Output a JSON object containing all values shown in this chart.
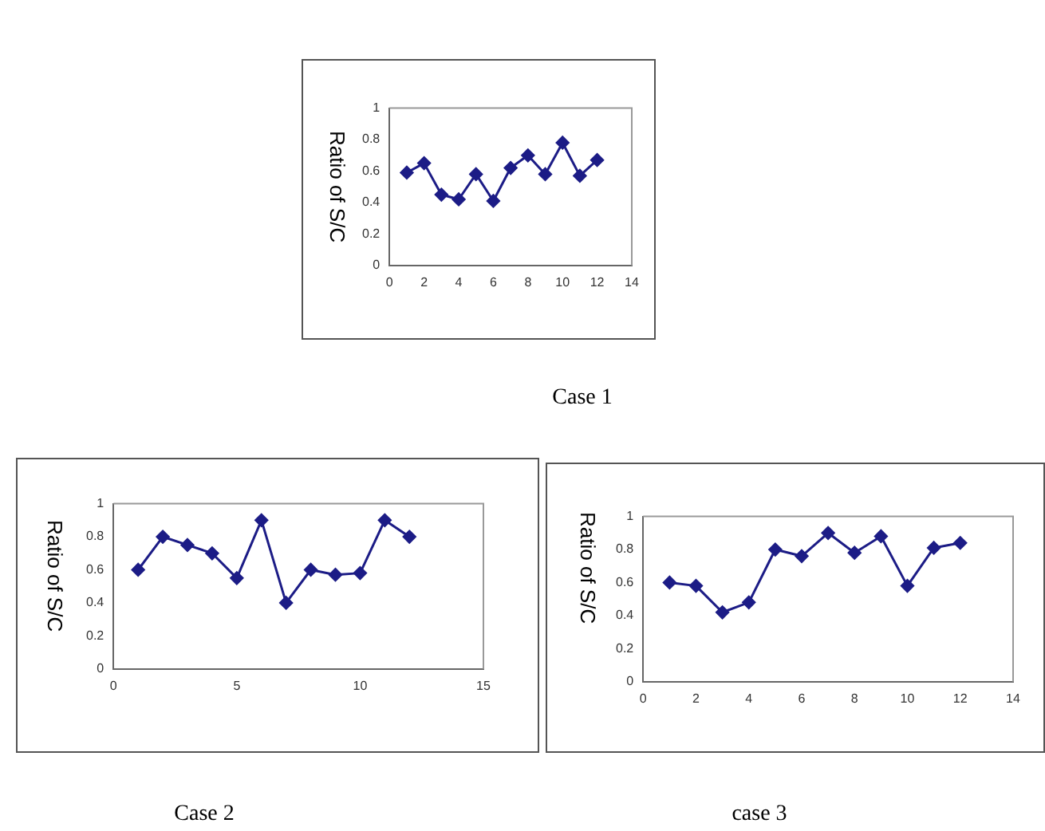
{
  "chart_data": [
    {
      "type": "line",
      "title": "Case 1",
      "ylabel": "Ratio of S/C",
      "x": [
        1,
        2,
        3,
        4,
        5,
        6,
        7,
        8,
        9,
        10,
        11,
        12
      ],
      "values": [
        0.59,
        0.65,
        0.45,
        0.42,
        0.58,
        0.41,
        0.62,
        0.7,
        0.58,
        0.78,
        0.57,
        0.67
      ],
      "color": "#1c1c86",
      "marker": "diamond",
      "line_style": "solid",
      "xlim": [
        0,
        14
      ],
      "xticks": [
        0,
        2,
        4,
        6,
        8,
        10,
        12,
        14
      ],
      "ylim": [
        0,
        1
      ],
      "yticks": [
        0,
        0.2,
        0.4,
        0.6,
        0.8,
        1
      ],
      "grid": false,
      "legend": false
    },
    {
      "type": "line",
      "title": "Case 2",
      "ylabel": "Ratio of S/C",
      "x": [
        1,
        2,
        3,
        4,
        5,
        6,
        7,
        8,
        9,
        10,
        11,
        12
      ],
      "values": [
        0.6,
        0.8,
        0.75,
        0.7,
        0.55,
        0.9,
        0.4,
        0.6,
        0.57,
        0.58,
        0.9,
        0.8
      ],
      "color": "#1c1c86",
      "marker": "diamond",
      "line_style": "solid",
      "xlim": [
        0,
        15
      ],
      "xticks": [
        0,
        5,
        10,
        15
      ],
      "ylim": [
        0,
        1
      ],
      "yticks": [
        0,
        0.2,
        0.4,
        0.6,
        0.8,
        1
      ],
      "grid": false,
      "legend": false
    },
    {
      "type": "line",
      "title": "case 3",
      "ylabel": "Ratio of S/C",
      "x": [
        1,
        2,
        3,
        4,
        5,
        6,
        7,
        8,
        9,
        10,
        11,
        12
      ],
      "values": [
        0.6,
        0.58,
        0.42,
        0.48,
        0.8,
        0.76,
        0.9,
        0.78,
        0.88,
        0.58,
        0.81,
        0.84
      ],
      "color": "#1c1c86",
      "marker": "diamond",
      "line_style": "solid",
      "xlim": [
        0,
        14
      ],
      "xticks": [
        0,
        2,
        4,
        6,
        8,
        10,
        12,
        14
      ],
      "ylim": [
        0,
        1
      ],
      "yticks": [
        0,
        0.2,
        0.4,
        0.6,
        0.8,
        1
      ],
      "grid": false,
      "legend": false
    }
  ]
}
